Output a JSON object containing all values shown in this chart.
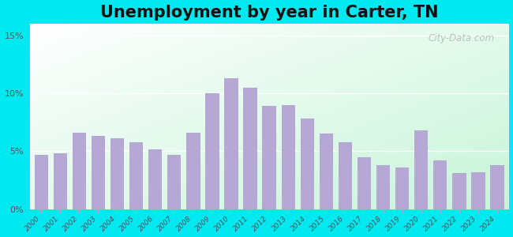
{
  "title": "Unemployment by year in Carter, TN",
  "years": [
    2000,
    2001,
    2002,
    2003,
    2004,
    2005,
    2006,
    2007,
    2008,
    2009,
    2010,
    2011,
    2012,
    2013,
    2014,
    2015,
    2016,
    2017,
    2018,
    2019,
    2020,
    2021,
    2022,
    2023,
    2024
  ],
  "values": [
    4.7,
    4.8,
    6.6,
    6.3,
    6.1,
    5.8,
    5.2,
    4.7,
    6.6,
    10.0,
    11.3,
    10.5,
    8.9,
    9.0,
    7.8,
    6.5,
    5.8,
    4.5,
    3.8,
    3.6,
    6.8,
    4.2,
    3.1,
    3.2,
    3.8
  ],
  "bar_color": "#b5a8d5",
  "yticks": [
    0,
    5,
    10,
    15
  ],
  "ylim": [
    0,
    16
  ],
  "outer_bg": "#00e8f0",
  "title_fontsize": 15,
  "watermark": "City-Data.com"
}
